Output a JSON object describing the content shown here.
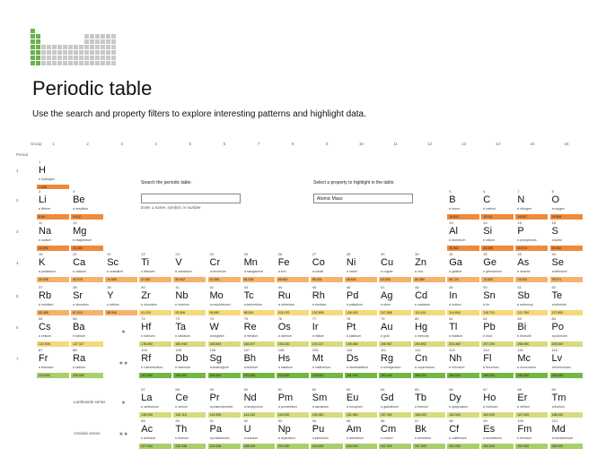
{
  "header": {
    "title": "Periodic table",
    "subtitle": "Use the search and property filters to explore interesting patterns and highlight data."
  },
  "axis": {
    "group_label": "Group",
    "period_label": "Period",
    "groups": [
      "1",
      "2",
      "3",
      "4",
      "5",
      "6",
      "7",
      "8",
      "9",
      "10",
      "11",
      "12",
      "13",
      "14",
      "15",
      "16"
    ],
    "periods": [
      "1",
      "2",
      "3",
      "4",
      "5",
      "6",
      "7"
    ]
  },
  "search": {
    "label": "Search the periodic table:",
    "value": "",
    "hint": "Enter a name, symbol, or number"
  },
  "property": {
    "label": "Select a property to highlight in the table:",
    "selected": "Atomic Mass"
  },
  "series": {
    "lanthanide_label": "Lanthanide series",
    "actinide_label": "Actinide series",
    "lanthanide_marker": "●",
    "actinide_marker": "●●"
  },
  "colors": {
    "low": "#ee8a3c",
    "mid_low": "#f5b26a",
    "mid": "#f5d97a",
    "mid_high": "#d6dc7e",
    "high": "#a9cf6a",
    "top": "#74b746",
    "logo_green": "#6ab04c",
    "logo_gray": "#c8c8c8"
  },
  "elements": [
    {
      "n": "1",
      "s": "H",
      "name": "hydrogen",
      "mass": "1.008",
      "col": 1,
      "row": 1,
      "c": "low"
    },
    {
      "n": "3",
      "s": "Li",
      "name": "lithium",
      "mass": "6.94",
      "col": 1,
      "row": 2,
      "c": "low"
    },
    {
      "n": "4",
      "s": "Be",
      "name": "beryllium",
      "mass": "9.012",
      "col": 2,
      "row": 2,
      "c": "low"
    },
    {
      "n": "5",
      "s": "B",
      "name": "boron",
      "mass": "10.810",
      "col": 13,
      "row": 2,
      "c": "low"
    },
    {
      "n": "6",
      "s": "C",
      "name": "carbon",
      "mass": "12.011",
      "col": 14,
      "row": 2,
      "c": "low"
    },
    {
      "n": "7",
      "s": "N",
      "name": "nitrogen",
      "mass": "14.007",
      "col": 15,
      "row": 2,
      "c": "low"
    },
    {
      "n": "8",
      "s": "O",
      "name": "oxygen",
      "mass": "15.999",
      "col": 16,
      "row": 2,
      "c": "low"
    },
    {
      "n": "11",
      "s": "Na",
      "name": "sodium",
      "mass": "22.990",
      "col": 1,
      "row": 3,
      "c": "low"
    },
    {
      "n": "12",
      "s": "Mg",
      "name": "magnesium",
      "mass": "24.305",
      "col": 2,
      "row": 3,
      "c": "low"
    },
    {
      "n": "13",
      "s": "Al",
      "name": "aluminum",
      "mass": "26.982",
      "col": 13,
      "row": 3,
      "c": "low"
    },
    {
      "n": "14",
      "s": "Si",
      "name": "silicon",
      "mass": "28.085",
      "col": 14,
      "row": 3,
      "c": "low"
    },
    {
      "n": "15",
      "s": "P",
      "name": "phosphorus",
      "mass": "30.974",
      "col": 15,
      "row": 3,
      "c": "low"
    },
    {
      "n": "16",
      "s": "S",
      "name": "sulfur",
      "mass": "32.060",
      "col": 16,
      "row": 3,
      "c": "low"
    },
    {
      "n": "19",
      "s": "K",
      "name": "potassium",
      "mass": "39.098",
      "col": 1,
      "row": 4,
      "c": "mid_low"
    },
    {
      "n": "20",
      "s": "Ca",
      "name": "calcium",
      "mass": "40.078",
      "col": 2,
      "row": 4,
      "c": "mid_low"
    },
    {
      "n": "21",
      "s": "Sc",
      "name": "scandium",
      "mass": "44.956",
      "col": 3,
      "row": 4,
      "c": "mid_low"
    },
    {
      "n": "22",
      "s": "Ti",
      "name": "titanium",
      "mass": "47.867",
      "col": 4,
      "row": 4,
      "c": "mid_low"
    },
    {
      "n": "23",
      "s": "V",
      "name": "vanadium",
      "mass": "50.942",
      "col": 5,
      "row": 4,
      "c": "mid_low"
    },
    {
      "n": "24",
      "s": "Cr",
      "name": "chromium",
      "mass": "51.996",
      "col": 6,
      "row": 4,
      "c": "mid_low"
    },
    {
      "n": "25",
      "s": "Mn",
      "name": "manganese",
      "mass": "54.938",
      "col": 7,
      "row": 4,
      "c": "mid_low"
    },
    {
      "n": "26",
      "s": "Fe",
      "name": "iron",
      "mass": "55.845",
      "col": 8,
      "row": 4,
      "c": "mid_low"
    },
    {
      "n": "27",
      "s": "Co",
      "name": "cobalt",
      "mass": "58.933",
      "col": 9,
      "row": 4,
      "c": "mid_low"
    },
    {
      "n": "28",
      "s": "Ni",
      "name": "nickel",
      "mass": "58.693",
      "col": 10,
      "row": 4,
      "c": "mid_low"
    },
    {
      "n": "29",
      "s": "Cu",
      "name": "copper",
      "mass": "63.546",
      "col": 11,
      "row": 4,
      "c": "mid_low"
    },
    {
      "n": "30",
      "s": "Zn",
      "name": "zinc",
      "mass": "65.380",
      "col": 12,
      "row": 4,
      "c": "mid_low"
    },
    {
      "n": "31",
      "s": "Ga",
      "name": "gallium",
      "mass": "69.723",
      "col": 13,
      "row": 4,
      "c": "mid_low"
    },
    {
      "n": "32",
      "s": "Ge",
      "name": "germanium",
      "mass": "72.630",
      "col": 14,
      "row": 4,
      "c": "mid_low"
    },
    {
      "n": "33",
      "s": "As",
      "name": "arsenic",
      "mass": "74.922",
      "col": 15,
      "row": 4,
      "c": "mid_low"
    },
    {
      "n": "34",
      "s": "Se",
      "name": "selenium",
      "mass": "78.971",
      "col": 16,
      "row": 4,
      "c": "mid_low"
    },
    {
      "n": "37",
      "s": "Rb",
      "name": "rubidium",
      "mass": "85.468",
      "col": 1,
      "row": 5,
      "c": "mid_low"
    },
    {
      "n": "38",
      "s": "Sr",
      "name": "strontium",
      "mass": "87.620",
      "col": 2,
      "row": 5,
      "c": "mid_low"
    },
    {
      "n": "39",
      "s": "Y",
      "name": "yttrium",
      "mass": "88.906",
      "col": 3,
      "row": 5,
      "c": "mid_low"
    },
    {
      "n": "40",
      "s": "Zr",
      "name": "zirconium",
      "mass": "91.224",
      "col": 4,
      "row": 5,
      "c": "mid"
    },
    {
      "n": "41",
      "s": "Nb",
      "name": "niobium",
      "mass": "92.906",
      "col": 5,
      "row": 5,
      "c": "mid"
    },
    {
      "n": "42",
      "s": "Mo",
      "name": "molybdenum",
      "mass": "95.950",
      "col": 6,
      "row": 5,
      "c": "mid"
    },
    {
      "n": "43",
      "s": "Tc",
      "name": "technetium",
      "mass": "98.000",
      "col": 7,
      "row": 5,
      "c": "mid"
    },
    {
      "n": "44",
      "s": "Ru",
      "name": "ruthenium",
      "mass": "101.070",
      "col": 8,
      "row": 5,
      "c": "mid"
    },
    {
      "n": "45",
      "s": "Rh",
      "name": "rhodium",
      "mass": "102.906",
      "col": 9,
      "row": 5,
      "c": "mid"
    },
    {
      "n": "46",
      "s": "Pd",
      "name": "palladium",
      "mass": "106.420",
      "col": 10,
      "row": 5,
      "c": "mid"
    },
    {
      "n": "47",
      "s": "Ag",
      "name": "silver",
      "mass": "107.868",
      "col": 11,
      "row": 5,
      "c": "mid"
    },
    {
      "n": "48",
      "s": "Cd",
      "name": "cadmium",
      "mass": "112.414",
      "col": 12,
      "row": 5,
      "c": "mid"
    },
    {
      "n": "49",
      "s": "In",
      "name": "indium",
      "mass": "114.818",
      "col": 13,
      "row": 5,
      "c": "mid"
    },
    {
      "n": "50",
      "s": "Sn",
      "name": "tin",
      "mass": "118.710",
      "col": 14,
      "row": 5,
      "c": "mid"
    },
    {
      "n": "51",
      "s": "Sb",
      "name": "antimony",
      "mass": "121.760",
      "col": 15,
      "row": 5,
      "c": "mid"
    },
    {
      "n": "52",
      "s": "Te",
      "name": "tellurium",
      "mass": "127.600",
      "col": 16,
      "row": 5,
      "c": "mid"
    },
    {
      "n": "55",
      "s": "Cs",
      "name": "cesium",
      "mass": "132.905",
      "col": 1,
      "row": 6,
      "c": "mid"
    },
    {
      "n": "56",
      "s": "Ba",
      "name": "barium",
      "mass": "137.327",
      "col": 2,
      "row": 6,
      "c": "mid"
    },
    {
      "n": "72",
      "s": "Hf",
      "name": "hafnium",
      "mass": "178.490",
      "col": 4,
      "row": 6,
      "c": "mid_high"
    },
    {
      "n": "73",
      "s": "Ta",
      "name": "tantalum",
      "mass": "180.948",
      "col": 5,
      "row": 6,
      "c": "mid_high"
    },
    {
      "n": "74",
      "s": "W",
      "name": "tungsten",
      "mass": "183.840",
      "col": 6,
      "row": 6,
      "c": "mid_high"
    },
    {
      "n": "75",
      "s": "Re",
      "name": "rhenium",
      "mass": "186.207",
      "col": 7,
      "row": 6,
      "c": "mid_high"
    },
    {
      "n": "76",
      "s": "Os",
      "name": "osmium",
      "mass": "190.230",
      "col": 8,
      "row": 6,
      "c": "mid_high"
    },
    {
      "n": "77",
      "s": "Ir",
      "name": "iridium",
      "mass": "192.217",
      "col": 9,
      "row": 6,
      "c": "mid_high"
    },
    {
      "n": "78",
      "s": "Pt",
      "name": "platinum",
      "mass": "195.084",
      "col": 10,
      "row": 6,
      "c": "mid_high"
    },
    {
      "n": "79",
      "s": "Au",
      "name": "gold",
      "mass": "196.967",
      "col": 11,
      "row": 6,
      "c": "mid_high"
    },
    {
      "n": "80",
      "s": "Hg",
      "name": "mercury",
      "mass": "200.592",
      "col": 12,
      "row": 6,
      "c": "mid_high"
    },
    {
      "n": "81",
      "s": "Tl",
      "name": "thallium",
      "mass": "204.380",
      "col": 13,
      "row": 6,
      "c": "mid_high"
    },
    {
      "n": "82",
      "s": "Pb",
      "name": "lead",
      "mass": "207.200",
      "col": 14,
      "row": 6,
      "c": "mid_high"
    },
    {
      "n": "83",
      "s": "Bi",
      "name": "bismuth",
      "mass": "208.980",
      "col": 15,
      "row": 6,
      "c": "mid_high"
    },
    {
      "n": "84",
      "s": "Po",
      "name": "polonium",
      "mass": "209.000",
      "col": 16,
      "row": 6,
      "c": "mid_high"
    },
    {
      "n": "87",
      "s": "Fr",
      "name": "francium",
      "mass": "223.000",
      "col": 1,
      "row": 7,
      "c": "high"
    },
    {
      "n": "88",
      "s": "Ra",
      "name": "radium",
      "mass": "226.000",
      "col": 2,
      "row": 7,
      "c": "high"
    },
    {
      "n": "104",
      "s": "Rf",
      "name": "rutherfordium",
      "mass": "267.000",
      "col": 4,
      "row": 7,
      "c": "top"
    },
    {
      "n": "105",
      "s": "Db",
      "name": "dubnium",
      "mass": "268.000",
      "col": 5,
      "row": 7,
      "c": "top"
    },
    {
      "n": "106",
      "s": "Sg",
      "name": "seaborgium",
      "mass": "269.000",
      "col": 6,
      "row": 7,
      "c": "top"
    },
    {
      "n": "107",
      "s": "Bh",
      "name": "bohrium",
      "mass": "270.000",
      "col": 7,
      "row": 7,
      "c": "top"
    },
    {
      "n": "108",
      "s": "Hs",
      "name": "hassium",
      "mass": "270.000",
      "col": 8,
      "row": 7,
      "c": "top"
    },
    {
      "n": "109",
      "s": "Mt",
      "name": "meitnerium",
      "mass": "278.000",
      "col": 9,
      "row": 7,
      "c": "top"
    },
    {
      "n": "110",
      "s": "Ds",
      "name": "darmstadtium",
      "mass": "281.000",
      "col": 10,
      "row": 7,
      "c": "top"
    },
    {
      "n": "111",
      "s": "Rg",
      "name": "roentgenium",
      "mass": "282.000",
      "col": 11,
      "row": 7,
      "c": "top"
    },
    {
      "n": "112",
      "s": "Cn",
      "name": "copernicium",
      "mass": "285.000",
      "col": 12,
      "row": 7,
      "c": "top"
    },
    {
      "n": "113",
      "s": "Nh",
      "name": "nihonium",
      "mass": "286.000",
      "col": 13,
      "row": 7,
      "c": "top"
    },
    {
      "n": "114",
      "s": "Fl",
      "name": "flerovium",
      "mass": "289.000",
      "col": 14,
      "row": 7,
      "c": "top"
    },
    {
      "n": "115",
      "s": "Mc",
      "name": "moscovium",
      "mass": "290.000",
      "col": 15,
      "row": 7,
      "c": "top"
    },
    {
      "n": "116",
      "s": "Lv",
      "name": "livermorium",
      "mass": "293.000",
      "col": 16,
      "row": 7,
      "c": "top"
    }
  ],
  "lanthanides": [
    {
      "n": "57",
      "s": "La",
      "name": "lanthanum",
      "mass": "138.905",
      "c": "mid_high"
    },
    {
      "n": "58",
      "s": "Ce",
      "name": "cerium",
      "mass": "140.116",
      "c": "mid_high"
    },
    {
      "n": "59",
      "s": "Pr",
      "name": "praseodymium",
      "mass": "140.908",
      "c": "mid_high"
    },
    {
      "n": "60",
      "s": "Nd",
      "name": "neodymium",
      "mass": "144.242",
      "c": "mid_high"
    },
    {
      "n": "61",
      "s": "Pm",
      "name": "promethium",
      "mass": "145.000",
      "c": "mid_high"
    },
    {
      "n": "62",
      "s": "Sm",
      "name": "samarium",
      "mass": "150.360",
      "c": "mid_high"
    },
    {
      "n": "63",
      "s": "Eu",
      "name": "europium",
      "mass": "151.964",
      "c": "mid_high"
    },
    {
      "n": "64",
      "s": "Gd",
      "name": "gadolinium",
      "mass": "157.250",
      "c": "mid_high"
    },
    {
      "n": "65",
      "s": "Tb",
      "name": "terbium",
      "mass": "158.925",
      "c": "mid_high"
    },
    {
      "n": "66",
      "s": "Dy",
      "name": "dysprosium",
      "mass": "162.500",
      "c": "mid_high"
    },
    {
      "n": "67",
      "s": "Ho",
      "name": "holmium",
      "mass": "164.930",
      "c": "mid_high"
    },
    {
      "n": "68",
      "s": "Er",
      "name": "erbium",
      "mass": "167.259",
      "c": "mid_high"
    },
    {
      "n": "69",
      "s": "Tm",
      "name": "thulium",
      "mass": "168.934",
      "c": "mid_high"
    }
  ],
  "actinides": [
    {
      "n": "89",
      "s": "Ac",
      "name": "actinium",
      "mass": "227.000",
      "c": "high"
    },
    {
      "n": "90",
      "s": "Th",
      "name": "thorium",
      "mass": "232.038",
      "c": "high"
    },
    {
      "n": "91",
      "s": "Pa",
      "name": "protactinium",
      "mass": "231.036",
      "c": "high"
    },
    {
      "n": "92",
      "s": "U",
      "name": "uranium",
      "mass": "238.029",
      "c": "high"
    },
    {
      "n": "93",
      "s": "Np",
      "name": "neptunium",
      "mass": "237.000",
      "c": "high"
    },
    {
      "n": "94",
      "s": "Pu",
      "name": "plutonium",
      "mass": "244.000",
      "c": "high"
    },
    {
      "n": "95",
      "s": "Am",
      "name": "americium",
      "mass": "243.000",
      "c": "high"
    },
    {
      "n": "96",
      "s": "Cm",
      "name": "curium",
      "mass": "247.000",
      "c": "high"
    },
    {
      "n": "97",
      "s": "Bk",
      "name": "berkelium",
      "mass": "247.000",
      "c": "high"
    },
    {
      "n": "98",
      "s": "Cf",
      "name": "californium",
      "mass": "251.000",
      "c": "high"
    },
    {
      "n": "99",
      "s": "Es",
      "name": "einsteinium",
      "mass": "252.000",
      "c": "high"
    },
    {
      "n": "100",
      "s": "Fm",
      "name": "fermium",
      "mass": "257.000",
      "c": "high"
    },
    {
      "n": "101",
      "s": "Md",
      "name": "mendelevium",
      "mass": "258.000",
      "c": "high"
    }
  ]
}
